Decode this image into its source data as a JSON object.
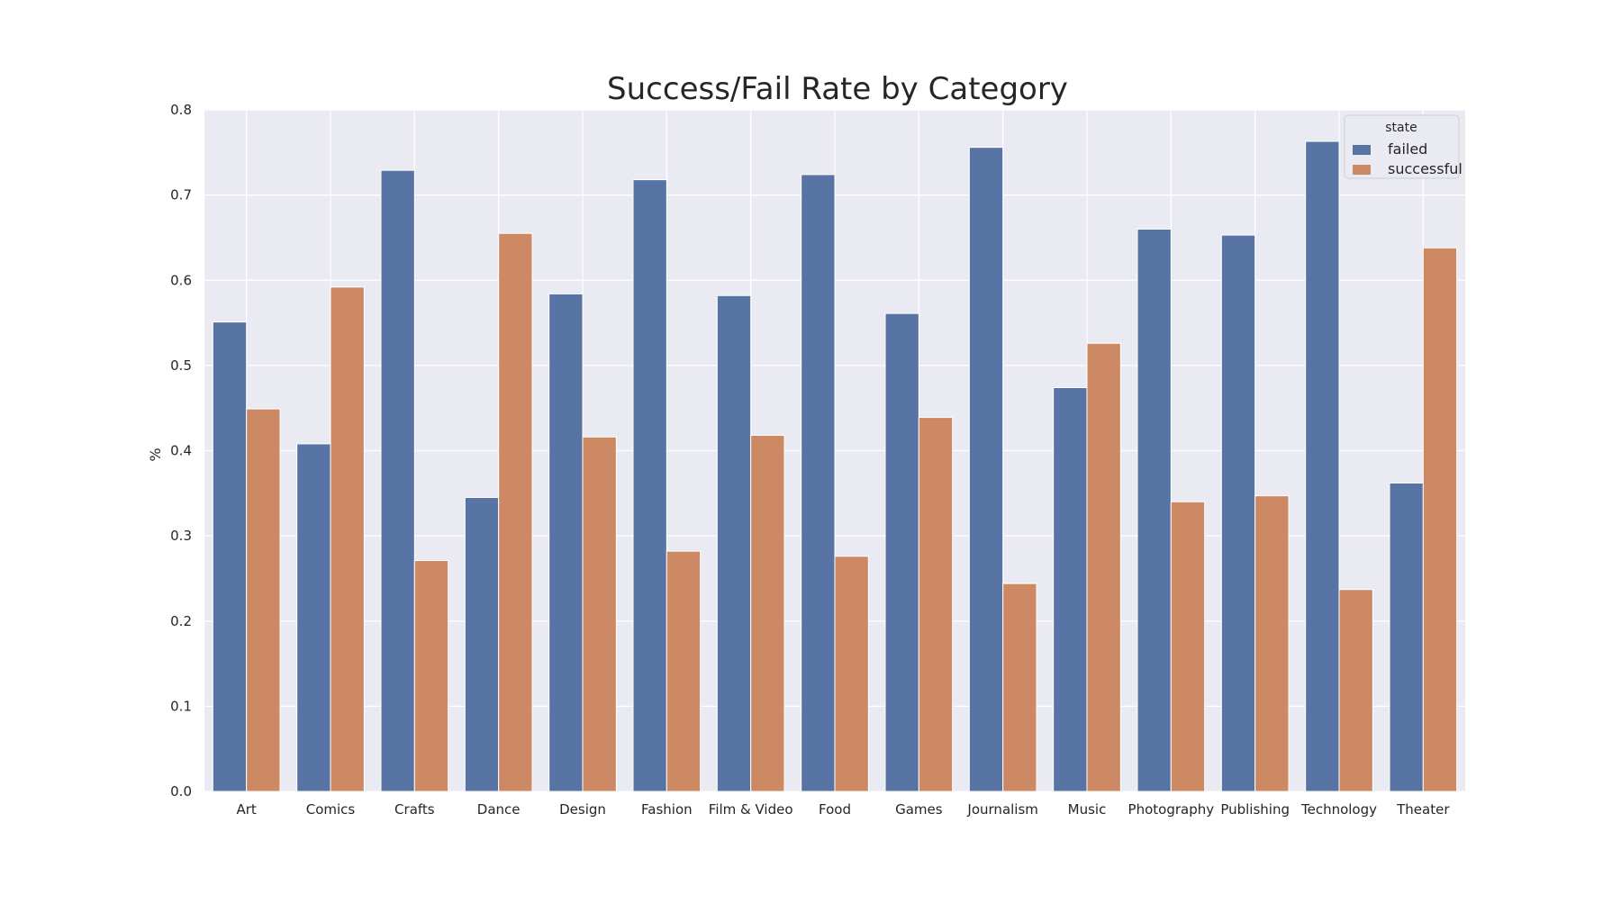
{
  "chart_data": {
    "type": "bar",
    "title": "Success/Fail Rate by Category",
    "xlabel": "",
    "ylabel": "%",
    "ylim": [
      0,
      0.8
    ],
    "yticks": [
      "0.0",
      "0.1",
      "0.2",
      "0.3",
      "0.4",
      "0.5",
      "0.6",
      "0.7",
      "0.8"
    ],
    "grid": true,
    "legend": {
      "title": "state",
      "placement": "top-right"
    },
    "categories": [
      "Art",
      "Comics",
      "Crafts",
      "Dance",
      "Design",
      "Fashion",
      "Film & Video",
      "Food",
      "Games",
      "Journalism",
      "Music",
      "Photography",
      "Publishing",
      "Technology",
      "Theater"
    ],
    "series": [
      {
        "name": "failed",
        "color": "#5874a5",
        "values": [
          0.551,
          0.408,
          0.729,
          0.345,
          0.584,
          0.718,
          0.582,
          0.724,
          0.561,
          0.756,
          0.474,
          0.66,
          0.653,
          0.763,
          0.362
        ]
      },
      {
        "name": "successful",
        "color": "#cc8963",
        "values": [
          0.449,
          0.592,
          0.271,
          0.655,
          0.416,
          0.282,
          0.418,
          0.276,
          0.439,
          0.244,
          0.526,
          0.34,
          0.347,
          0.237,
          0.638
        ]
      }
    ]
  }
}
